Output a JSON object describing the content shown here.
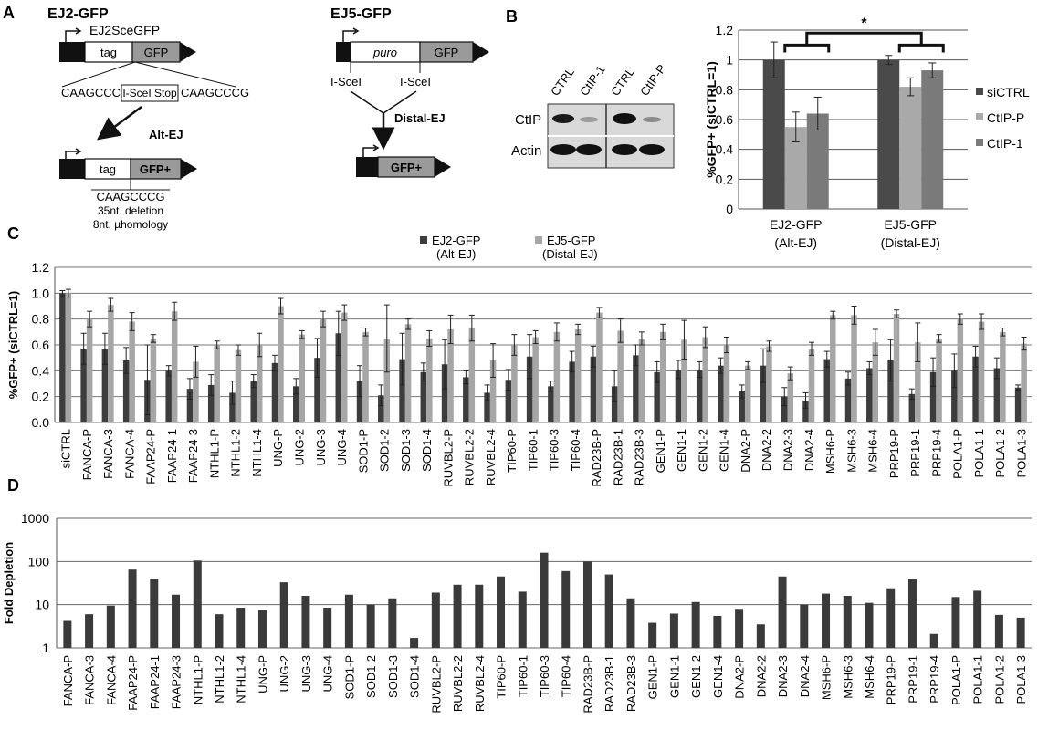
{
  "panel_letters": {
    "a": "A",
    "b": "B",
    "c": "C",
    "d": "D"
  },
  "panel_a": {
    "ej2": {
      "title": "EJ2-GFP",
      "sce_label": "EJ2SceGFP",
      "tag": "tag",
      "gfp": "GFP",
      "seq_left": "CAAGCCCG",
      "seq_box": "I-SceI Stop",
      "seq_right": "CAAGCCCG",
      "arrow_label": "Alt-EJ",
      "product_tag": "tag",
      "product_gfp": "GFP+",
      "product_seq": "CAAGCCCG",
      "deletion": "35nt. deletion",
      "homology": "8nt. µhomology"
    },
    "ej5": {
      "title": "EJ5-GFP",
      "puro": "puro",
      "gfp": "GFP",
      "isce_left": "I-SceI",
      "isce_right": "I-SceI",
      "arrow_label": "Distal-EJ",
      "product_gfp": "GFP+"
    }
  },
  "panel_b": {
    "blot": {
      "lanes": [
        "CTRL",
        "CtIP-1",
        "CTRL",
        "CtIP-P"
      ],
      "rows": [
        "CtIP",
        "Actin"
      ]
    },
    "colors": {
      "siCTRL": "#4a4a4a",
      "CtIP-P": "#a9a9a9",
      "CtIP-1": "#7a7a7a"
    },
    "significance": "*"
  },
  "panel_c_legend": {
    "ej2_line1": "EJ2-GFP",
    "ej2_line2": "(Alt-EJ)",
    "ej5_line1": "EJ5-GFP",
    "ej5_line2": "(Distal-EJ)",
    "ej2_color": "#3d3d3d",
    "ej5_color": "#a6a6a6"
  },
  "panel_d_color": "#3a3a3a",
  "chart_data": [
    {
      "type": "bar",
      "panel": "B",
      "categories": [
        "EJ2-GFP (Alt-EJ)",
        "EJ5-GFP (Distal-EJ)"
      ],
      "category_lines": [
        [
          "EJ2-GFP",
          "(Alt-EJ)"
        ],
        [
          "EJ5-GFP",
          "(Distal-EJ)"
        ]
      ],
      "series": [
        {
          "name": "siCTRL",
          "values": [
            1.0,
            1.0
          ],
          "errors": [
            0.12,
            0.03
          ]
        },
        {
          "name": "CtIP-P",
          "values": [
            0.55,
            0.82
          ],
          "errors": [
            0.1,
            0.06
          ]
        },
        {
          "name": "CtIP-1",
          "values": [
            0.64,
            0.93
          ],
          "errors": [
            0.11,
            0.05
          ]
        }
      ],
      "ylabel": "%GFP+ (siCTRL=1)",
      "ylim": [
        0,
        1.2
      ],
      "yticks": [
        "0",
        "0.2",
        "0.4",
        "0.6",
        "0.8",
        "1",
        "1.2"
      ],
      "grid": true,
      "legend": "right"
    },
    {
      "type": "bar",
      "panel": "C",
      "categories": [
        "siCTRL",
        "FANCA-P",
        "FANCA-3",
        "FANCA-4",
        "FAAP24-P",
        "FAAP24-1",
        "FAAP24-3",
        "NTHL1-P",
        "NTHL1-2",
        "NTHL1-4",
        "UNG-P",
        "UNG-2",
        "UNG-3",
        "UNG-4",
        "SOD1-P",
        "SOD1-2",
        "SOD1-3",
        "SOD1-4",
        "RUVBL2-P",
        "RUVBL2-2",
        "RUVBL2-4",
        "TIP60-P",
        "TIP60-1",
        "TIP60-3",
        "TIP60-4",
        "RAD23B-P",
        "RAD23B-1",
        "RAD23B-3",
        "GEN1-P",
        "GEN1-1",
        "GEN1-2",
        "GEN1-4",
        "DNA2-P",
        "DNA2-2",
        "DNA2-3",
        "DNA2-4",
        "MSH6-P",
        "MSH6-3",
        "MSH6-4",
        "PRP19-P",
        "PRP19-1",
        "PRP19-4",
        "POLA1-P",
        "POLA1-1",
        "POLA1-2",
        "POLA1-3"
      ],
      "series": [
        {
          "name": "EJ2-GFP (Alt-EJ)",
          "values": [
            1.0,
            0.57,
            0.57,
            0.48,
            0.33,
            0.4,
            0.26,
            0.29,
            0.23,
            0.32,
            0.46,
            0.28,
            0.5,
            0.69,
            0.32,
            0.21,
            0.49,
            0.39,
            0.45,
            0.35,
            0.23,
            0.33,
            0.51,
            0.28,
            0.47,
            0.51,
            0.28,
            0.52,
            0.39,
            0.41,
            0.41,
            0.44,
            0.24,
            0.44,
            0.2,
            0.17,
            0.49,
            0.34,
            0.42,
            0.48,
            0.22,
            0.39,
            0.4,
            0.51,
            0.42,
            0.27
          ],
          "errors": [
            0.02,
            0.12,
            0.12,
            0.1,
            0.27,
            0.04,
            0.08,
            0.08,
            0.09,
            0.05,
            0.06,
            0.06,
            0.15,
            0.17,
            0.12,
            0.08,
            0.2,
            0.07,
            0.19,
            0.05,
            0.06,
            0.08,
            0.17,
            0.04,
            0.08,
            0.08,
            0.12,
            0.08,
            0.08,
            0.07,
            0.06,
            0.06,
            0.05,
            0.13,
            0.07,
            0.06,
            0.06,
            0.05,
            0.05,
            0.16,
            0.04,
            0.11,
            0.13,
            0.08,
            0.08,
            0.02
          ]
        },
        {
          "name": "EJ5-GFP (Distal-EJ)",
          "values": [
            1.0,
            0.8,
            0.91,
            0.78,
            0.65,
            0.86,
            0.47,
            0.6,
            0.56,
            0.6,
            0.9,
            0.68,
            0.8,
            0.85,
            0.7,
            0.65,
            0.76,
            0.65,
            0.72,
            0.73,
            0.48,
            0.6,
            0.66,
            0.7,
            0.72,
            0.85,
            0.71,
            0.65,
            0.7,
            0.64,
            0.66,
            0.6,
            0.44,
            0.59,
            0.38,
            0.57,
            0.83,
            0.83,
            0.62,
            0.84,
            0.62,
            0.65,
            0.8,
            0.78,
            0.7,
            0.61
          ],
          "errors": [
            0.03,
            0.06,
            0.05,
            0.07,
            0.03,
            0.07,
            0.12,
            0.03,
            0.04,
            0.09,
            0.06,
            0.03,
            0.06,
            0.06,
            0.03,
            0.26,
            0.04,
            0.06,
            0.11,
            0.1,
            0.13,
            0.08,
            0.05,
            0.07,
            0.04,
            0.04,
            0.09,
            0.05,
            0.06,
            0.15,
            0.08,
            0.06,
            0.03,
            0.04,
            0.05,
            0.05,
            0.03,
            0.07,
            0.1,
            0.03,
            0.15,
            0.03,
            0.04,
            0.06,
            0.03,
            0.05
          ]
        }
      ],
      "ylabel": "%GFP+ (siCTRL=1)",
      "ylim": [
        0,
        1.2
      ],
      "yticks": [
        "0.0",
        "0.2",
        "0.4",
        "0.6",
        "0.8",
        "1.0",
        "1.2"
      ],
      "grid": true,
      "legend": "top"
    },
    {
      "type": "bar",
      "panel": "D",
      "categories": [
        "FANCA-P",
        "FANCA-3",
        "FANCA-4",
        "FAAP24-P",
        "FAAP24-1",
        "FAAP24-3",
        "NTHL1-P",
        "NTHL1-2",
        "NTHL1-4",
        "UNG-P",
        "UNG-2",
        "UNG-3",
        "UNG-4",
        "SOD1-P",
        "SOD1-2",
        "SOD1-3",
        "SOD1-4",
        "RUVBL2-P",
        "RUVBL2-2",
        "RUVBL2-4",
        "TIP60-P",
        "TIP60-1",
        "TIP60-3",
        "TIP60-4",
        "RAD23B-P",
        "RAD23B-1",
        "RAD23B-3",
        "GEN1-P",
        "GEN1-1",
        "GEN1-2",
        "GEN1-4",
        "DNA2-P",
        "DNA2-2",
        "DNA2-3",
        "DNA2-4",
        "MSH6-P",
        "MSH6-3",
        "MSH6-4",
        "PRP19-P",
        "PRP19-1",
        "PRP19-4",
        "POLA1-P",
        "POLA1-1",
        "POLA1-2",
        "POLA1-3"
      ],
      "values": [
        4.2,
        6,
        9.5,
        65,
        40,
        17,
        105,
        6,
        8.5,
        7.5,
        33,
        16,
        8.5,
        17,
        10,
        14,
        1.7,
        19,
        29,
        29,
        45,
        20,
        160,
        60,
        100,
        50,
        14,
        3.8,
        6.2,
        11.5,
        5.5,
        8,
        3.5,
        45,
        10,
        18,
        16,
        11,
        24,
        40,
        2.1,
        15,
        21,
        5.8,
        5
      ],
      "ylabel": "Fold Depletion",
      "scale": "log",
      "ylim": [
        1,
        1000
      ],
      "yticks": [
        "1",
        "10",
        "100",
        "1000"
      ],
      "grid": true
    }
  ]
}
